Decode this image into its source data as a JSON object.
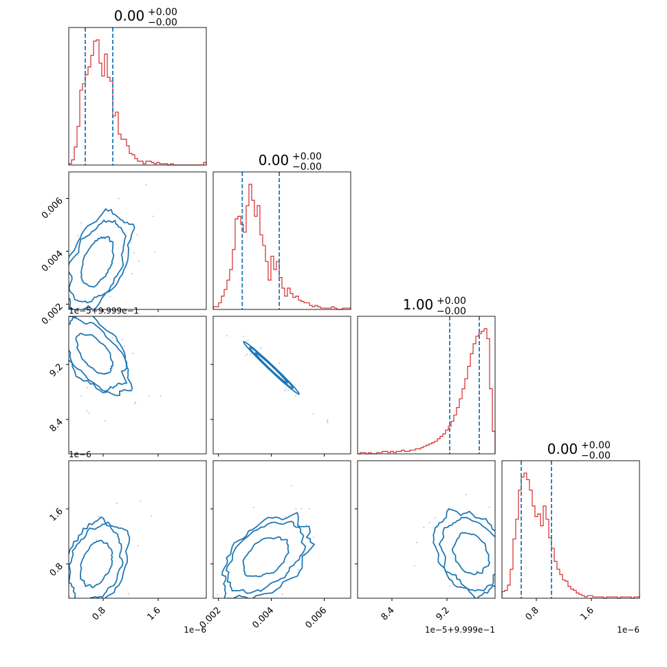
{
  "chart_data": {
    "type": "corner",
    "colors": {
      "hist": "#d62728",
      "contour": "#1f77b4",
      "quantile": "#1f77b4",
      "axis": "#000000",
      "scatter": "#a9c6de"
    },
    "diagonal": [
      {
        "title_main": "0.00",
        "title_sup": "+0.00",
        "title_sub": "−0.00",
        "xlim": [
          0.3,
          2.3
        ],
        "quantiles": [
          0.54,
          0.94
        ],
        "counts": [
          1,
          4,
          14,
          30,
          58,
          63,
          70,
          76,
          85,
          96,
          97,
          79,
          69,
          86,
          68,
          65,
          38,
          41,
          24,
          20,
          20,
          15,
          9,
          8,
          5,
          3,
          3,
          1,
          3,
          3,
          2,
          1,
          2,
          1,
          1,
          1,
          0,
          1,
          0,
          0,
          0,
          0,
          0,
          0,
          0,
          0,
          0,
          0,
          0,
          2
        ]
      },
      {
        "title_main": "0.00",
        "title_sup": "+0.00",
        "title_sub": "−0.00",
        "xlim": [
          0.0018,
          0.007
        ],
        "quantiles": [
          0.0029,
          0.0043
        ],
        "counts": [
          2,
          2,
          5,
          10,
          15,
          22,
          30,
          45,
          68,
          70,
          64,
          58,
          78,
          94,
          82,
          70,
          78,
          56,
          48,
          36,
          22,
          40,
          30,
          36,
          24,
          16,
          10,
          16,
          12,
          9,
          10,
          7,
          6,
          5,
          5,
          3,
          2,
          3,
          2,
          1,
          1,
          1,
          1,
          2,
          1,
          0,
          0,
          1,
          1,
          1
        ]
      },
      {
        "title_main": "1.00",
        "title_sup": "+0.00",
        "title_sub": "−0.00",
        "xlim": [
          7.9,
          9.9
        ],
        "quantiles": [
          9.24,
          9.67
        ],
        "counts": [
          0,
          1,
          1,
          0,
          1,
          0,
          0,
          1,
          1,
          2,
          2,
          1,
          2,
          1,
          2,
          2,
          3,
          2,
          2,
          3,
          3,
          4,
          4,
          5,
          6,
          7,
          8,
          9,
          10,
          12,
          14,
          16,
          19,
          22,
          26,
          31,
          37,
          44,
          52,
          60,
          70,
          80,
          88,
          94,
          96,
          98,
          100,
          92,
          52,
          18
        ]
      },
      {
        "title_main": "0.00",
        "title_sup": "+0.00",
        "title_sub": "−0.00",
        "xlim": [
          0.3,
          2.3
        ],
        "quantiles": [
          0.58,
          1.02
        ],
        "counts": [
          5,
          6,
          10,
          22,
          45,
          60,
          82,
          92,
          95,
          90,
          82,
          70,
          62,
          64,
          55,
          70,
          60,
          46,
          38,
          28,
          22,
          18,
          14,
          13,
          9,
          7,
          6,
          4,
          3,
          2,
          1,
          2,
          2,
          1,
          1,
          1,
          1,
          0,
          1,
          1,
          1,
          1,
          0,
          1,
          1,
          1,
          1,
          0,
          1,
          1
        ]
      }
    ],
    "axes": {
      "row_ylim": [
        null,
        [
          0.0018,
          0.007
        ],
        [
          7.9,
          9.9
        ],
        [
          0.3,
          2.3
        ]
      ],
      "col_xlim": [
        [
          0.3,
          2.3
        ],
        [
          0.0018,
          0.007
        ],
        [
          7.9,
          9.9
        ],
        [
          0.3,
          2.3
        ]
      ],
      "y_ticks": [
        [],
        [
          {
            "v": 0.002,
            "label": "0.002"
          },
          {
            "v": 0.004,
            "label": "0.004"
          },
          {
            "v": 0.006,
            "label": "0.006"
          }
        ],
        [
          {
            "v": 8.4,
            "label": "8.4"
          },
          {
            "v": 9.2,
            "label": "9.2"
          }
        ],
        [
          {
            "v": 0.8,
            "label": "0.8"
          },
          {
            "v": 1.6,
            "label": "1.6"
          }
        ]
      ],
      "x_ticks": [
        [
          {
            "v": 0.8,
            "label": "0.8"
          },
          {
            "v": 1.6,
            "label": "1.6"
          }
        ],
        [
          {
            "v": 0.002,
            "label": "0.002"
          },
          {
            "v": 0.004,
            "label": "0.004"
          },
          {
            "v": 0.006,
            "label": "0.006"
          }
        ],
        [
          {
            "v": 8.4,
            "label": "8.4"
          },
          {
            "v": 9.2,
            "label": "9.2"
          }
        ],
        [
          {
            "v": 0.8,
            "label": "0.8"
          },
          {
            "v": 1.6,
            "label": "1.6"
          }
        ]
      ],
      "offset_labels": {
        "row2_y": "1e−5+9.999e−1",
        "row3_y": "1e−6",
        "col0_x": "1e−6",
        "col2_x": "1e−5+9.999e−1",
        "col3_x": "1e−6"
      }
    },
    "panels": [
      {
        "row": 1,
        "col": 0,
        "center": [
          0.72,
          0.0036
        ],
        "spread": [
          0.28,
          0.0011
        ],
        "corr": 0.45
      },
      {
        "row": 2,
        "col": 0,
        "center": [
          0.68,
          9.35
        ],
        "spread": [
          0.3,
          0.35
        ],
        "corr": -0.55
      },
      {
        "row": 2,
        "col": 1,
        "center": [
          0.004,
          9.15
        ],
        "spread": [
          0.0011,
          0.4
        ],
        "corr": -0.99
      },
      {
        "row": 3,
        "col": 0,
        "center": [
          0.7,
          0.8
        ],
        "spread": [
          0.27,
          0.38
        ],
        "corr": 0.3
      },
      {
        "row": 3,
        "col": 1,
        "center": [
          0.0038,
          0.9
        ],
        "spread": [
          0.001,
          0.35
        ],
        "corr": 0.45
      },
      {
        "row": 3,
        "col": 2,
        "center": [
          9.55,
          0.95
        ],
        "spread": [
          0.3,
          0.35
        ],
        "corr": -0.25
      }
    ]
  }
}
